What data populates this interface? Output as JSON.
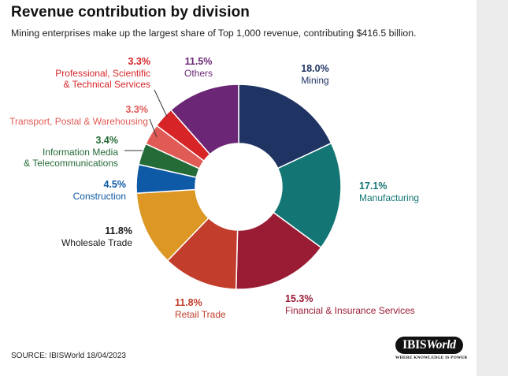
{
  "header": {
    "title": "Revenue contribution by division",
    "subtitle": "Mining enterprises make up the largest share of Top 1,000 revenue, contributing $416.5 billion."
  },
  "footer": {
    "source": "SOURCE: IBISWorld 18/04/2023"
  },
  "logo": {
    "name_main": "IBIS",
    "name_italic": "World",
    "tagline": "WHERE KNOWLEDGE IS POWER"
  },
  "chart_data": {
    "type": "pie",
    "variant": "donut",
    "title": "Revenue contribution by division",
    "unit": "%",
    "slices": [
      {
        "key": "mining",
        "label_lines": [
          "Mining"
        ],
        "value": 18.0,
        "value_label": "18.0%",
        "color": "#1f3463",
        "label_color": "#1f3463"
      },
      {
        "key": "manufacturing",
        "label_lines": [
          "Manufacturing"
        ],
        "value": 17.1,
        "value_label": "17.1%",
        "color": "#137674",
        "label_color": "#137674"
      },
      {
        "key": "financial",
        "label_lines": [
          "Financial & Insurance Services"
        ],
        "value": 15.3,
        "value_label": "15.3%",
        "color": "#9a1b34",
        "label_color": "#9a1b34"
      },
      {
        "key": "retail",
        "label_lines": [
          "Retail Trade"
        ],
        "value": 11.8,
        "value_label": "11.8%",
        "color": "#c23d2b",
        "label_color": "#c23d2b"
      },
      {
        "key": "wholesale",
        "label_lines": [
          "Wholesale Trade"
        ],
        "value": 11.8,
        "value_label": "11.8%",
        "color": "#dc9725",
        "label_color": "#1a1a1a"
      },
      {
        "key": "construction",
        "label_lines": [
          "Construction"
        ],
        "value": 4.5,
        "value_label": "4.5%",
        "color": "#0f5aa6",
        "label_color": "#0f5aa6"
      },
      {
        "key": "info-media",
        "label_lines": [
          "Information Media",
          "& Telecommunications"
        ],
        "value": 3.4,
        "value_label": "3.4%",
        "color": "#246b37",
        "label_color": "#246b37"
      },
      {
        "key": "transport",
        "label_lines": [
          "Transport, Postal & Warehousing"
        ],
        "value": 3.3,
        "value_label": "3.3%",
        "color": "#e05b55",
        "label_color": "#e05b55"
      },
      {
        "key": "professional",
        "label_lines": [
          "Professional, Scientific",
          "& Technical Services"
        ],
        "value": 3.3,
        "value_label": "3.3%",
        "color": "#d62427",
        "label_color": "#d62427"
      },
      {
        "key": "others",
        "label_lines": [
          "Others"
        ],
        "value": 11.5,
        "value_label": "11.5%",
        "color": "#6b2775",
        "label_color": "#6b2775"
      }
    ]
  }
}
